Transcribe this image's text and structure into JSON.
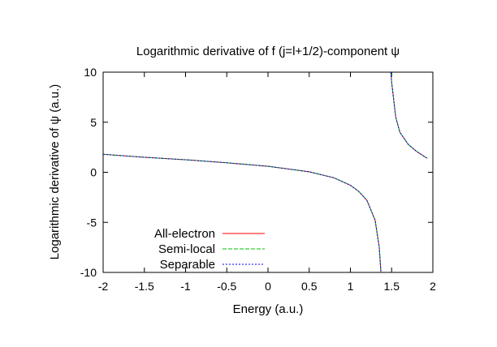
{
  "chart_data": {
    "type": "line",
    "title": "Logarithmic derivative of f (j=l+1/2)-component ψ",
    "xlabel": "Energy (a.u.)",
    "ylabel": "Logarithmic derivative of ψ (a.u.)",
    "xlim": [
      -2,
      2
    ],
    "ylim": [
      -10,
      10
    ],
    "xticks": [
      "-2",
      "-1.5",
      "-1",
      "-0.5",
      "0",
      "0.5",
      "1",
      "1.5",
      "2"
    ],
    "yticks": [
      "10",
      "5",
      "0",
      "-5",
      "-10"
    ],
    "grid": false,
    "legend_position": "bottom-left",
    "series": [
      {
        "name": "All-electron",
        "color": "#ff0000",
        "style": "solid",
        "x": [
          -2.0,
          -1.5,
          -1.0,
          -0.5,
          0.0,
          0.5,
          0.8,
          1.0,
          1.1,
          1.2,
          1.3,
          1.35,
          1.37,
          1.49,
          1.5,
          1.55,
          1.6,
          1.7,
          1.8,
          1.93
        ],
        "y": [
          1.8,
          1.5,
          1.25,
          0.95,
          0.6,
          0.05,
          -0.55,
          -1.3,
          -1.9,
          -2.8,
          -4.8,
          -7.5,
          -10.0,
          10.0,
          9.0,
          5.5,
          4.0,
          2.8,
          2.1,
          1.4
        ]
      },
      {
        "name": "Semi-local",
        "color": "#00c000",
        "style": "dash",
        "x": [
          -2.0,
          -1.5,
          -1.0,
          -0.5,
          0.0,
          0.5,
          0.8,
          1.0,
          1.1,
          1.2,
          1.3,
          1.35,
          1.37,
          1.49,
          1.5,
          1.55,
          1.6,
          1.7,
          1.8,
          1.93
        ],
        "y": [
          1.8,
          1.5,
          1.25,
          0.95,
          0.6,
          0.05,
          -0.55,
          -1.3,
          -1.9,
          -2.8,
          -4.8,
          -7.5,
          -10.0,
          10.0,
          9.0,
          5.5,
          4.0,
          2.8,
          2.1,
          1.4
        ]
      },
      {
        "name": "Separable",
        "color": "#0000ff",
        "style": "dot",
        "x": [
          -2.0,
          -1.5,
          -1.0,
          -0.5,
          0.0,
          0.5,
          0.8,
          1.0,
          1.1,
          1.2,
          1.3,
          1.35,
          1.37,
          1.49,
          1.5,
          1.55,
          1.6,
          1.7,
          1.8,
          1.93
        ],
        "y": [
          1.8,
          1.5,
          1.25,
          0.95,
          0.6,
          0.05,
          -0.55,
          -1.3,
          -1.9,
          -2.8,
          -4.8,
          -7.5,
          -10.0,
          10.0,
          9.0,
          5.5,
          4.0,
          2.8,
          2.1,
          1.4
        ]
      }
    ]
  }
}
